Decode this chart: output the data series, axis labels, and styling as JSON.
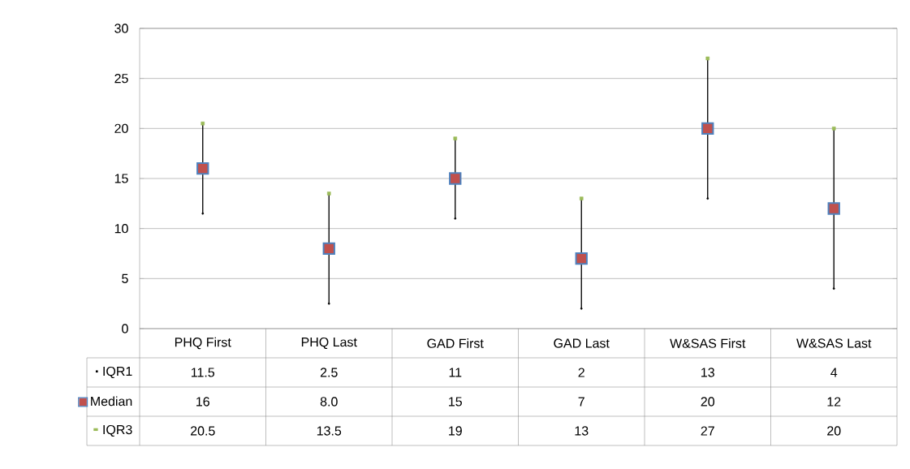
{
  "chart_data": {
    "type": "scatter",
    "categories": [
      "PHQ First",
      "PHQ Last",
      "GAD First",
      "GAD Last",
      "W&SAS First",
      "W&SAS Last"
    ],
    "series": [
      {
        "name": "IQR1",
        "color": "#000000",
        "marker": "none",
        "values": [
          11.5,
          2.5,
          11,
          2,
          13,
          4
        ],
        "value_labels": [
          "11.5",
          "2.5",
          "11",
          "2",
          "13",
          "4"
        ]
      },
      {
        "name": "Median",
        "color": "#c0504d",
        "marker": "square",
        "values": [
          16,
          8,
          15,
          7,
          20,
          12
        ],
        "value_labels": [
          "16",
          "8.0",
          "15",
          "7",
          "20",
          "12"
        ]
      },
      {
        "name": "IQR3",
        "color": "#9bbb59",
        "marker": "square",
        "values": [
          20.5,
          13.5,
          19,
          13,
          27,
          20
        ],
        "value_labels": [
          "20.5",
          "13.5",
          "19",
          "13",
          "27",
          "20"
        ]
      }
    ],
    "ylim": [
      0,
      30
    ],
    "yticks": [
      0,
      5,
      10,
      15,
      20,
      25,
      30
    ],
    "grid": "y",
    "legend": "bottom"
  }
}
